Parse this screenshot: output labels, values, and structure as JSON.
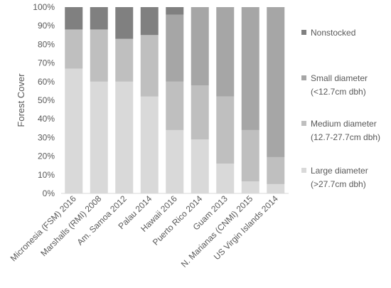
{
  "chart_data": {
    "type": "bar",
    "stacked": true,
    "title": "",
    "xlabel": "",
    "ylabel": "Forest Cover",
    "ylim": [
      0,
      100
    ],
    "yticks": [
      "0%",
      "10%",
      "20%",
      "30%",
      "40%",
      "50%",
      "60%",
      "70%",
      "80%",
      "90%",
      "100%"
    ],
    "grid": false,
    "legend_position": "right",
    "categories": [
      "Micronesia (FSM) 2016",
      "Marshalls (RMI) 2008",
      "Am. Samoa 2012",
      "Palau 2014",
      "Hawaii 2016",
      "Puerto Rico 2014",
      "Guam 2013",
      "N. Marianas (CNMI) 2015",
      "US Virgin Islands 2014"
    ],
    "series": [
      {
        "name": "Large diameter (>27.7cm dbh)",
        "color": "#d9d9d9",
        "values": [
          67,
          60,
          60,
          52,
          34,
          29,
          16,
          6.5,
          5
        ]
      },
      {
        "name": "Medium diameter (12.7-27.7cm dbh)",
        "color": "#bfbfbf",
        "values": [
          21,
          28,
          23,
          33,
          26,
          29,
          36,
          27.5,
          14.5
        ]
      },
      {
        "name": "Small diameter (<12.7cm dbh)",
        "color": "#a6a6a6",
        "values": [
          0,
          0,
          0,
          0,
          36,
          42,
          48,
          66,
          80.5
        ]
      },
      {
        "name": "Nonstocked",
        "color": "#808080",
        "values": [
          12,
          12,
          17,
          15,
          4,
          0,
          0,
          0,
          0
        ]
      }
    ],
    "legend": [
      {
        "lines": [
          "Nonstocked"
        ],
        "color": "#808080"
      },
      {
        "lines": [
          "Small diameter",
          "(<12.7cm dbh)"
        ],
        "color": "#a6a6a6"
      },
      {
        "lines": [
          "Medium diameter",
          "(12.7-27.7cm dbh)"
        ],
        "color": "#bfbfbf"
      },
      {
        "lines": [
          "Large diameter",
          "(>27.7cm dbh)"
        ],
        "color": "#d9d9d9"
      }
    ]
  }
}
